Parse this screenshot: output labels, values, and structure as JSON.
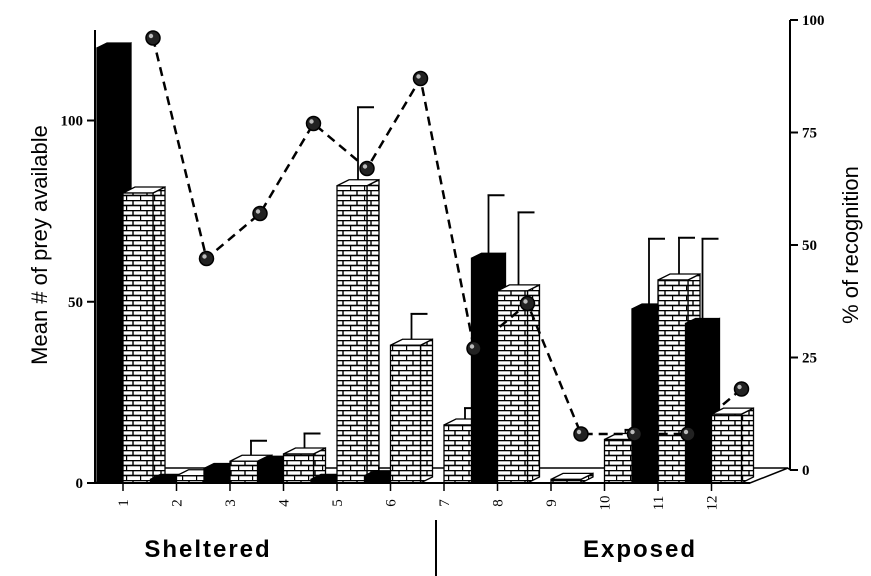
{
  "chart_data": {
    "type": "bar",
    "title": "",
    "categories": [
      "1",
      "2",
      "3",
      "4",
      "5",
      "6",
      "7",
      "8",
      "9",
      "10",
      "11",
      "12"
    ],
    "groups": [
      {
        "label": "Sheltered",
        "categories": [
          "1",
          "2",
          "3",
          "4",
          "5",
          "6"
        ]
      },
      {
        "label": "Exposed",
        "categories": [
          "7",
          "8",
          "9",
          "10",
          "11",
          "12"
        ]
      }
    ],
    "ylabel": "Mean # of prey available",
    "ylim": [
      0,
      120
    ],
    "yticks": [
      0,
      50,
      100
    ],
    "y2label": "% of recognition",
    "y2lim": [
      0,
      100
    ],
    "y2ticks": [
      0,
      25,
      50,
      75,
      100
    ],
    "series": [
      {
        "style": "solid-black",
        "color": "#000000",
        "values": [
          120,
          1,
          4,
          6,
          1,
          2,
          0,
          62,
          0,
          0,
          48,
          44
        ],
        "error": [
          0,
          0,
          0,
          0,
          0,
          0,
          0,
          16,
          0,
          0,
          18,
          22
        ]
      },
      {
        "style": "brick",
        "color": "#ffffff",
        "values": [
          80,
          2,
          6,
          8,
          82,
          38,
          16,
          53,
          1,
          12,
          56,
          19
        ],
        "error": [
          0,
          0,
          4,
          4,
          20,
          7,
          3,
          20,
          0,
          1,
          10,
          0
        ]
      }
    ],
    "recognition": {
      "style": "dashed-line-circle-markers",
      "color": "#000000",
      "values": [
        96,
        47,
        57,
        77,
        67,
        87,
        27,
        37,
        8,
        8,
        8,
        18
      ]
    }
  }
}
